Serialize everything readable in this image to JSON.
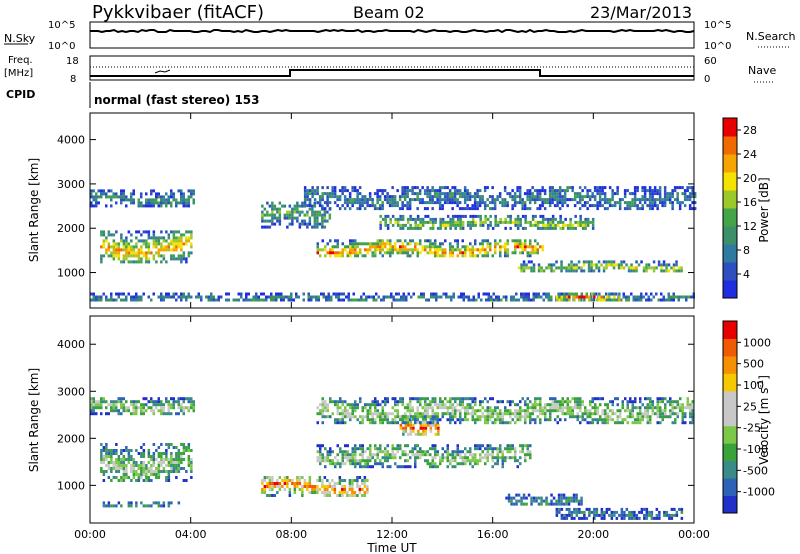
{
  "header": {
    "radar": "Pykkvibaer (fitACF)",
    "beam": "Beam 02",
    "date": "23/Mar/2013"
  },
  "top_panels": {
    "nsky_label": "N.Sky",
    "nsearch_label": "N.Search",
    "noise_ticks_left": [
      "10^5",
      "10^0"
    ],
    "noise_ticks_right": [
      "10^5",
      "10^0"
    ],
    "freq_label": "Freq.",
    "freq_unit": "[MHz]",
    "freq_ticks": [
      "18",
      "8"
    ],
    "nave_label": "Nave",
    "nave_ticks": [
      "60",
      "0"
    ],
    "cpid_label": "CPID",
    "cpid_text": "normal (fast stereo) 153"
  },
  "chart_data": [
    {
      "type": "heatmap",
      "name": "power",
      "ylabel": "Slant Range [km]",
      "yticks": [
        "1000",
        "2000",
        "3000",
        "4000"
      ],
      "ylim": [
        200,
        4600
      ],
      "colorbar_label": "Power [dB]",
      "colorbar_ticks": [
        "4",
        "8",
        "12",
        "16",
        "20",
        "24",
        "28"
      ],
      "colorbar_range": [
        0,
        30
      ],
      "colors": [
        "#1f2fe0",
        "#2e4fc0",
        "#2f7aa0",
        "#3d8f6a",
        "#43a548",
        "#9cc92a",
        "#f5e200",
        "#f5a400",
        "#f06a00",
        "#e80000"
      ],
      "echo_bands": [
        {
          "t_start": 0.0,
          "t_end": 4.1,
          "range_center": 2700,
          "range_width": 350,
          "level": 0.35
        },
        {
          "t_start": 0.4,
          "t_end": 4.0,
          "range_center": 1600,
          "range_width": 700,
          "level": 0.75
        },
        {
          "t_start": 0.0,
          "t_end": 24.0,
          "range_center": 450,
          "range_width": 200,
          "level": 0.3
        },
        {
          "t_start": 6.8,
          "t_end": 9.5,
          "range_center": 2300,
          "range_width": 600,
          "level": 0.4
        },
        {
          "t_start": 9.0,
          "t_end": 18.0,
          "range_center": 1550,
          "range_width": 400,
          "level": 0.8
        },
        {
          "t_start": 11.5,
          "t_end": 20.0,
          "range_center": 2150,
          "range_width": 300,
          "level": 0.55
        },
        {
          "t_start": 17.0,
          "t_end": 23.5,
          "range_center": 1150,
          "range_width": 250,
          "level": 0.6
        },
        {
          "t_start": 18.5,
          "t_end": 21.0,
          "range_center": 450,
          "range_width": 200,
          "level": 0.85
        },
        {
          "t_start": 8.5,
          "t_end": 24.0,
          "range_center": 2700,
          "range_width": 500,
          "level": 0.3
        }
      ]
    },
    {
      "type": "heatmap",
      "name": "velocity",
      "ylabel": "Slant Range [km]",
      "yticks": [
        "1000",
        "2000",
        "3000",
        "4000"
      ],
      "ylim": [
        200,
        4600
      ],
      "colorbar_label": "Velocity [m s^-1]",
      "colorbar_ticks": [
        "1000",
        "500",
        "100",
        "25",
        "-25",
        "-100",
        "-500",
        "-1000"
      ],
      "colors": [
        "#2030c8",
        "#2e62b8",
        "#3a8a88",
        "#3aa23a",
        "#7cc84a",
        "#c8c8c8",
        "#c8c8c8",
        "#f5c800",
        "#f59000",
        "#f05a00",
        "#e80000"
      ],
      "xlabel": "Time UT",
      "xticks": [
        "00:00",
        "04:00",
        "08:00",
        "12:00",
        "16:00",
        "20:00",
        "00:00"
      ],
      "xlim": [
        0,
        24
      ],
      "echo_bands": [
        {
          "t_start": 0.0,
          "t_end": 4.1,
          "range_center": 2700,
          "range_width": 350,
          "level": 0.5
        },
        {
          "t_start": 0.4,
          "t_end": 4.0,
          "range_center": 1500,
          "range_width": 800,
          "level": 0.45
        },
        {
          "t_start": 0.5,
          "t_end": 3.5,
          "range_center": 620,
          "range_width": 80,
          "level": 0.3
        },
        {
          "t_start": 6.8,
          "t_end": 11.0,
          "range_center": 1000,
          "range_width": 400,
          "level": 0.85
        },
        {
          "t_start": 9.0,
          "t_end": 17.5,
          "range_center": 1650,
          "range_width": 450,
          "level": 0.5
        },
        {
          "t_start": 12.3,
          "t_end": 13.8,
          "range_center": 2300,
          "range_width": 400,
          "level": 0.9
        },
        {
          "t_start": 16.5,
          "t_end": 19.5,
          "range_center": 700,
          "range_width": 250,
          "level": 0.25
        },
        {
          "t_start": 18.5,
          "t_end": 23.5,
          "range_center": 420,
          "range_width": 200,
          "level": 0.2
        },
        {
          "t_start": 9.0,
          "t_end": 24.0,
          "range_center": 2600,
          "range_width": 550,
          "level": 0.5
        }
      ]
    }
  ]
}
